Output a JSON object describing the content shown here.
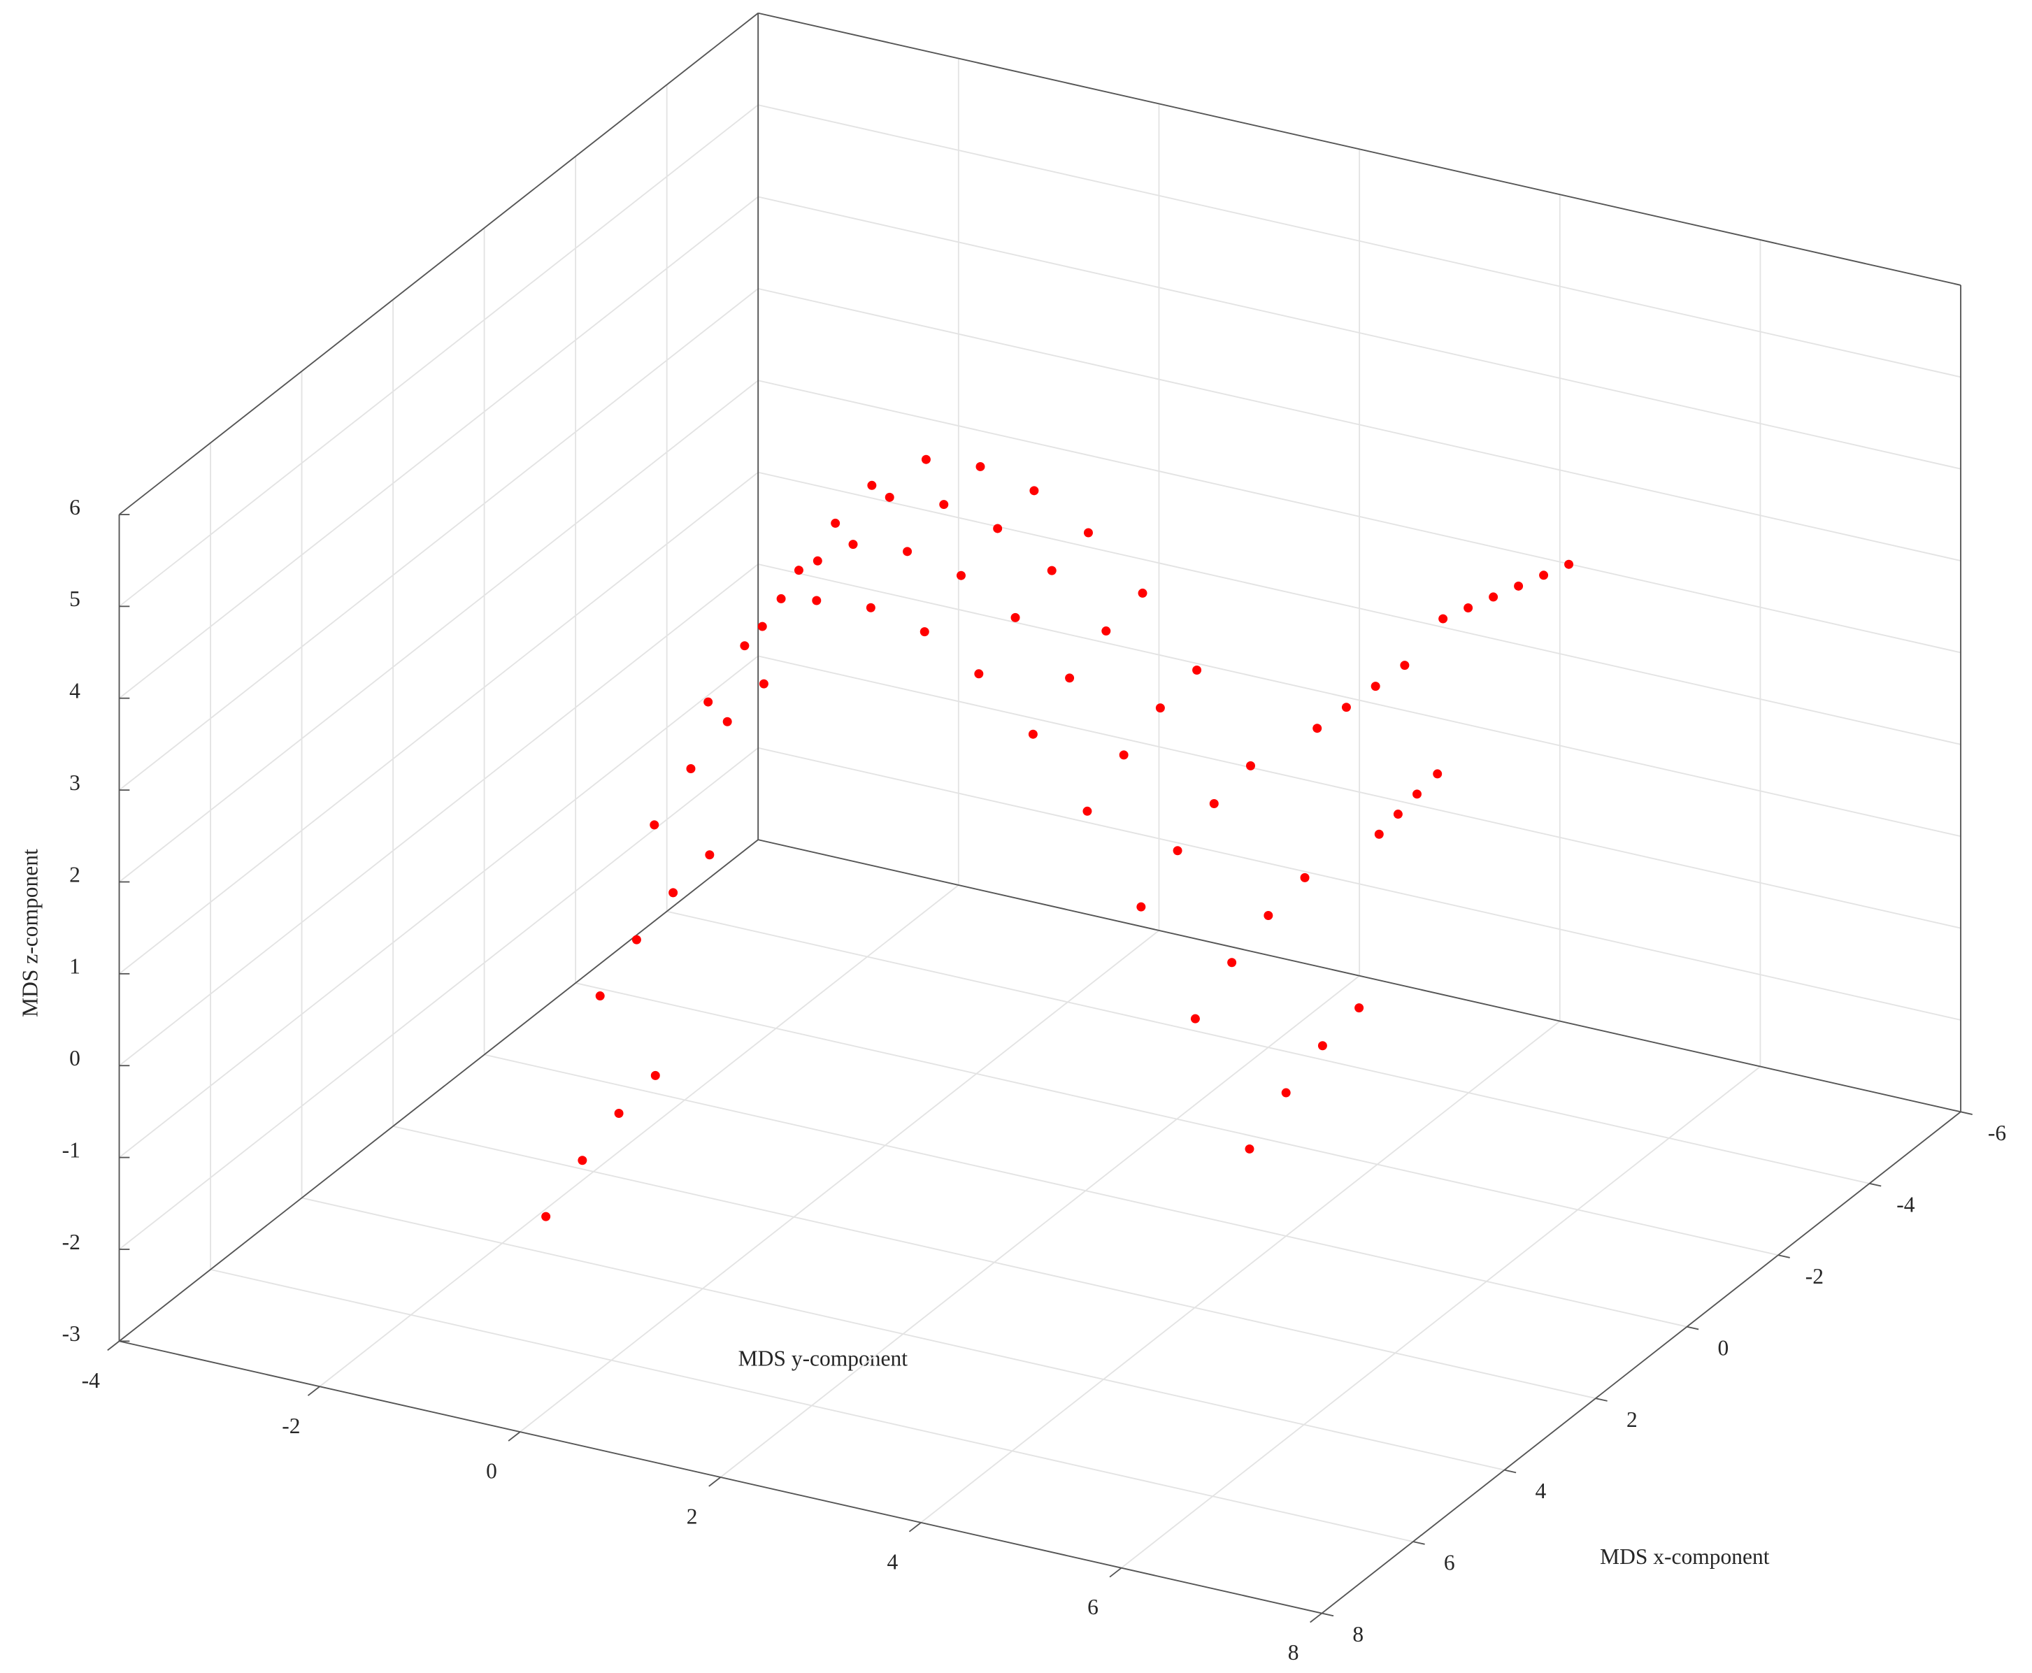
{
  "chart_data": {
    "type": "scatter3d",
    "xlabel": "MDS x-component",
    "ylabel": "MDS y-component",
    "zlabel": "MDS z-component",
    "xlim": [
      -6,
      8
    ],
    "xticks": [
      -6,
      -4,
      -2,
      0,
      2,
      4,
      6,
      8
    ],
    "ylim": [
      -4,
      8
    ],
    "yticks": [
      -4,
      -2,
      0,
      2,
      4,
      6,
      8
    ],
    "zlim": [
      -3,
      6
    ],
    "zticks": [
      -3,
      -2,
      -1,
      0,
      1,
      2,
      3,
      4,
      5,
      6
    ],
    "grid": true,
    "series": [
      {
        "color": "#ff0000",
        "y": [
          -1.2,
          -0.8,
          -0.4,
          0,
          0.4,
          0.8,
          1.2,
          1.6,
          2.0,
          2.4,
          2.8,
          3.2,
          3.6,
          4.0,
          -1.2,
          -0.8,
          -0.4,
          0,
          0.4,
          0.8,
          1.2,
          1.6,
          2.0,
          2.4,
          2.8,
          3.2,
          3.6,
          4.0,
          -1.2,
          -0.8,
          -0.4,
          0,
          0.4,
          0.8,
          1.2,
          1.6,
          2.0,
          2.4,
          2.8,
          3.2,
          3.6,
          4.0,
          -1.2,
          -0.8,
          -0.4,
          0,
          0.4,
          0.8,
          1.2,
          1.6,
          2.0,
          2.4,
          2.8,
          3.2,
          3.6,
          4.0,
          4.2,
          4.36,
          4.52,
          4.68,
          4.84,
          5.0,
          3.4,
          3.6,
          3.8,
          4.0,
          4.2,
          4.33,
          4.46,
          4.6
        ],
        "x": [
          4.0,
          3.69,
          3.38,
          3.08,
          2.77,
          2.46,
          2.15,
          1.85,
          1.54,
          1.23,
          0.92,
          0.62,
          0.31,
          0.0,
          4.8,
          4.49,
          4.18,
          3.88,
          3.57,
          3.26,
          2.95,
          2.65,
          2.34,
          2.03,
          1.72,
          1.42,
          1.11,
          0.8,
          3.2,
          2.89,
          2.58,
          2.28,
          1.97,
          1.66,
          1.35,
          1.05,
          0.74,
          0.43,
          0.12,
          -0.18,
          -0.49,
          -0.8,
          2.4,
          2.09,
          1.78,
          1.48,
          1.17,
          0.86,
          0.55,
          0.25,
          -0.06,
          -0.37,
          -0.68,
          -0.98,
          -1.29,
          -1.6,
          -3.0,
          -3.2,
          -3.4,
          -3.6,
          -3.8,
          -4.0,
          -2.0,
          -2.2,
          -2.4,
          -2.6,
          -1.6,
          -1.73,
          -1.86,
          -2.0
        ],
        "z": [
          -1.9,
          0.48,
          2.32,
          3.64,
          4.44,
          4.7,
          4.6,
          4.32,
          3.84,
          3.16,
          2.3,
          1.24,
          0.0,
          -1.44,
          -2.2,
          0.18,
          2.02,
          3.34,
          4.14,
          4.4,
          4.3,
          4.02,
          3.54,
          2.86,
          2.0,
          0.94,
          -0.3,
          -1.74,
          -1.7,
          0.68,
          2.52,
          3.84,
          4.64,
          4.9,
          4.8,
          4.52,
          4.04,
          3.36,
          2.5,
          1.44,
          0.2,
          -1.24,
          -1.6,
          0.78,
          2.62,
          3.94,
          4.74,
          5.0,
          4.9,
          4.62,
          4.14,
          3.46,
          2.6,
          1.54,
          0.3,
          -1.14,
          2.6,
          2.68,
          2.76,
          2.84,
          2.92,
          3.0,
          1.6,
          1.8,
          2.0,
          2.2,
          0.8,
          1.0,
          1.2,
          1.4
        ]
      }
    ]
  }
}
